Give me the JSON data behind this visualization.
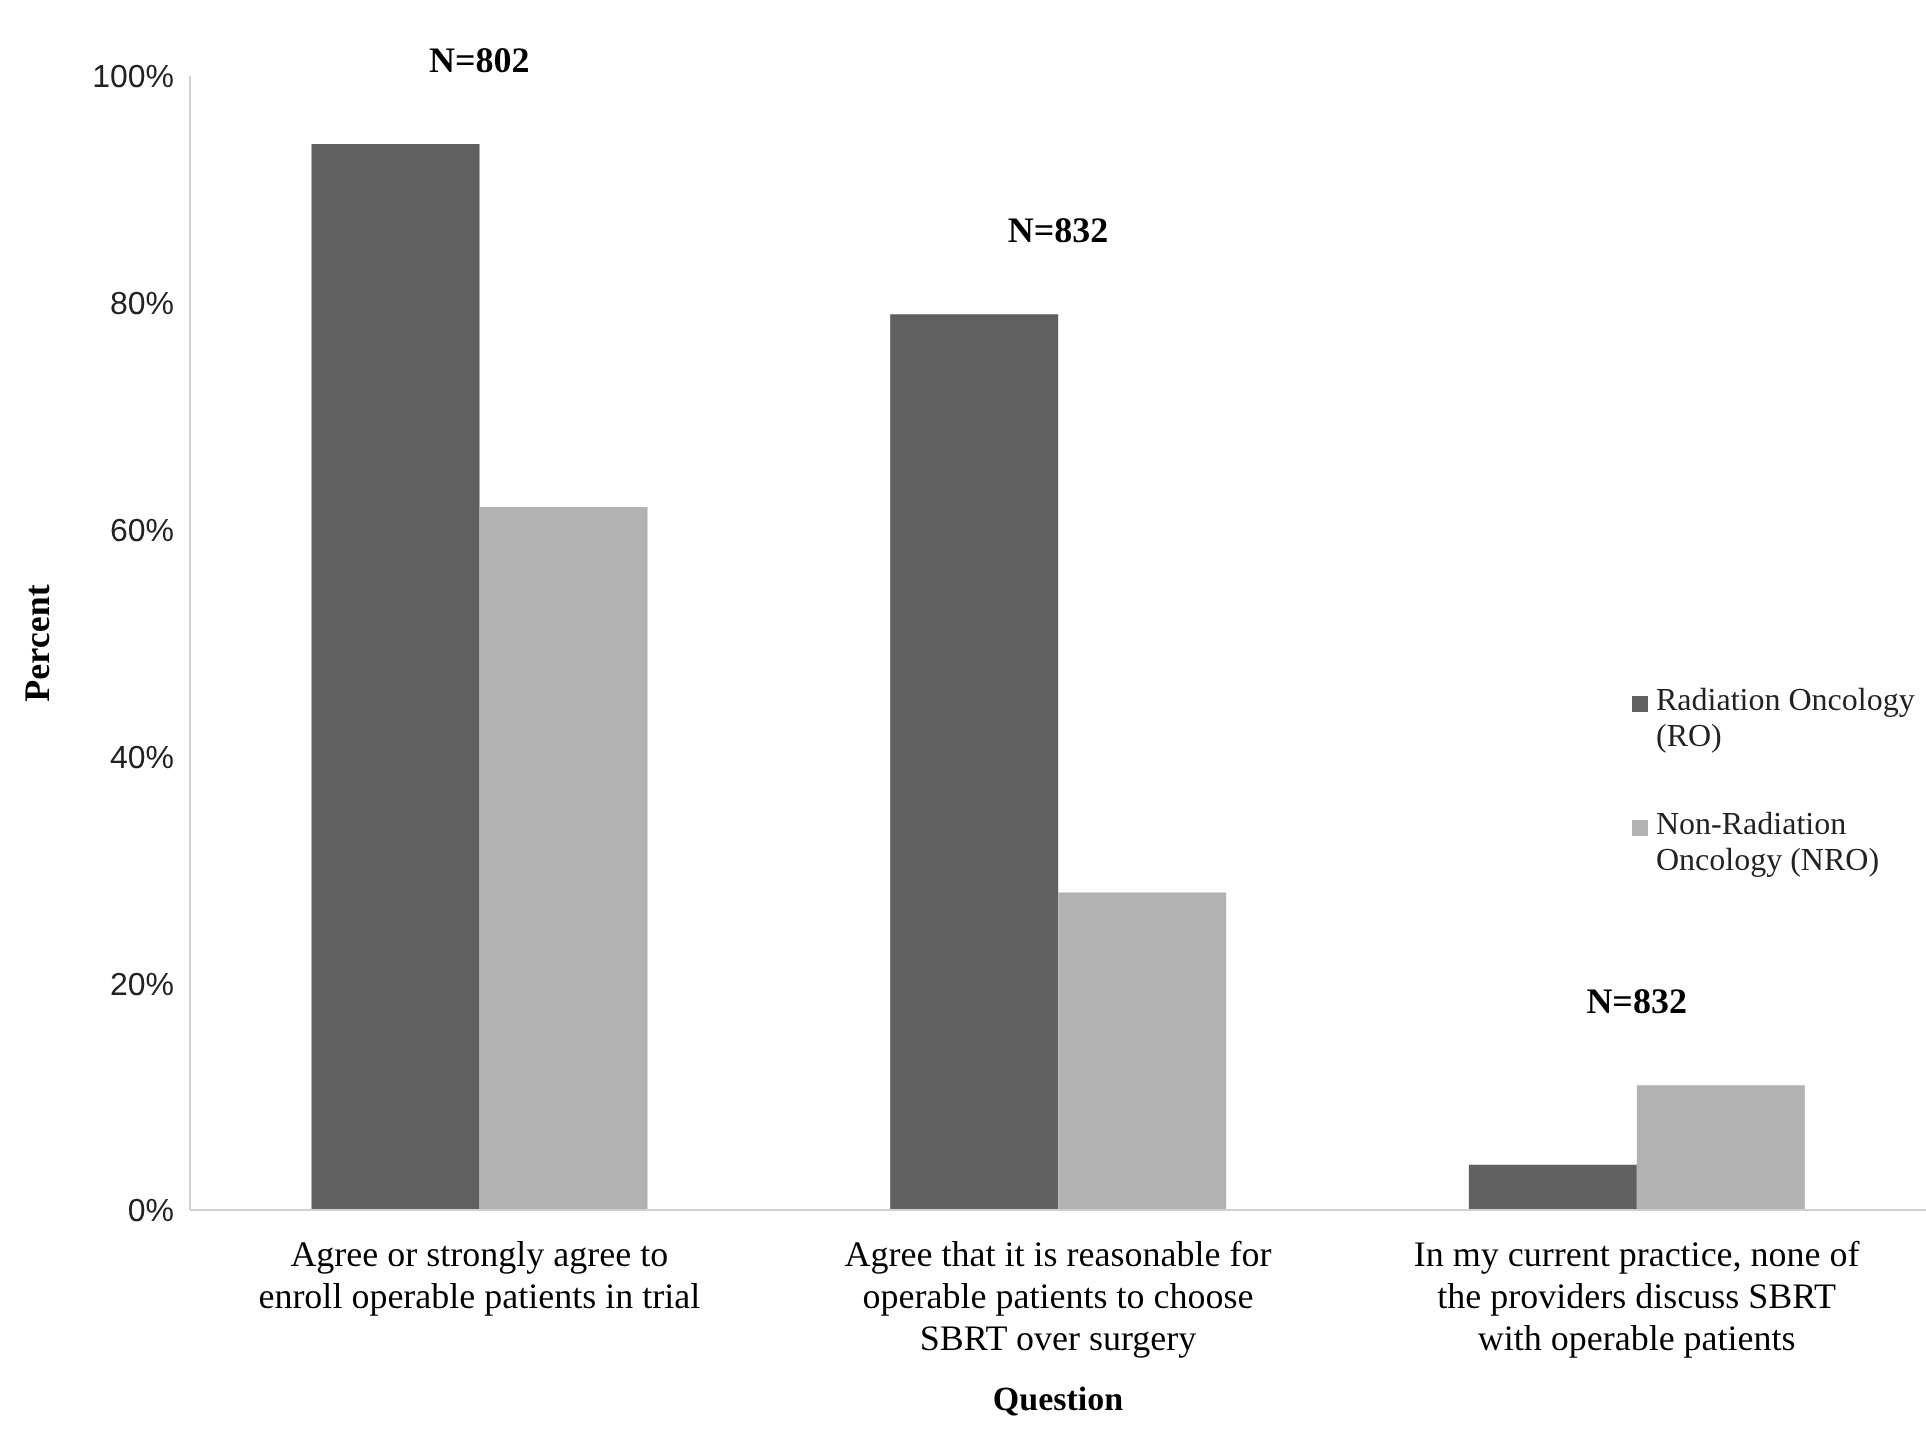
{
  "chart_data": {
    "type": "bar",
    "xlabel": "Question",
    "ylabel": "Percent",
    "categories": [
      "Agree or strongly agree to enroll operable patients in trial",
      "Agree that it is reasonable for operable patients to choose SBRT over surgery",
      "In my current practice, none of the providers discuss SBRT with operable patients"
    ],
    "series": [
      {
        "name": "Radiation Oncology (RO)",
        "color": "#606060",
        "values": [
          94,
          79,
          4
        ]
      },
      {
        "name": "Non-Radiation Oncology (NRO)",
        "color": "#b2b2b2",
        "values": [
          62,
          28,
          11
        ]
      }
    ],
    "ylim": [
      0,
      100
    ],
    "yticks": [
      {
        "value": 0,
        "label": "0%"
      },
      {
        "value": 20,
        "label": "20%"
      },
      {
        "value": 40,
        "label": "40%"
      },
      {
        "value": 60,
        "label": "60%"
      },
      {
        "value": 80,
        "label": "80%"
      },
      {
        "value": 100,
        "label": "100%"
      }
    ],
    "grid": false,
    "legend": "right",
    "annotations": [
      "N=802",
      "N=832",
      "N=832"
    ]
  }
}
